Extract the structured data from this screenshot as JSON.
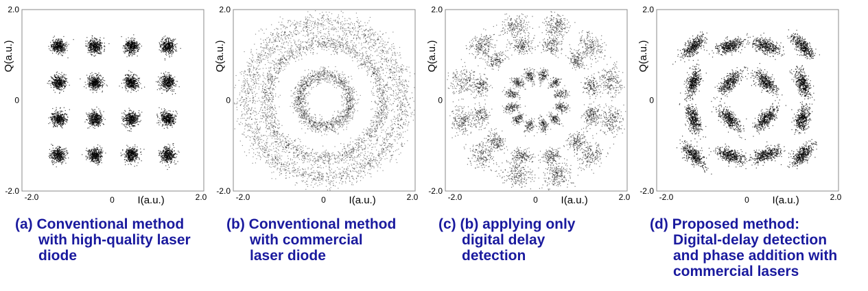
{
  "chart_data": [
    {
      "type": "scatter",
      "panel_id": "a",
      "caption": [
        "(a) Conventional method",
        "with high-quality laser",
        "diode"
      ],
      "xlabel": "I(a.u.)",
      "ylabel": "Q(a.u.)",
      "xlim": [
        -2.0,
        2.0
      ],
      "ylim": [
        -2.0,
        2.0
      ],
      "x_ticks": [
        "-2.0",
        "0",
        "2.0"
      ],
      "y_ticks": [
        "2.0",
        "0",
        "-2.0"
      ],
      "grid": false,
      "point_color": "#000000",
      "pattern": "16QAM tight clusters",
      "clusters": [
        {
          "x": -1.2,
          "y": 1.2
        },
        {
          "x": -0.4,
          "y": 1.2
        },
        {
          "x": 0.4,
          "y": 1.2
        },
        {
          "x": 1.2,
          "y": 1.2
        },
        {
          "x": -1.2,
          "y": 0.4
        },
        {
          "x": -0.4,
          "y": 0.4
        },
        {
          "x": 0.4,
          "y": 0.4
        },
        {
          "x": 1.2,
          "y": 0.4
        },
        {
          "x": -1.2,
          "y": -0.4
        },
        {
          "x": -0.4,
          "y": -0.4
        },
        {
          "x": 0.4,
          "y": -0.4
        },
        {
          "x": 1.2,
          "y": -0.4
        },
        {
          "x": -1.2,
          "y": -1.2
        },
        {
          "x": -0.4,
          "y": -1.2
        },
        {
          "x": 0.4,
          "y": -1.2
        },
        {
          "x": 1.2,
          "y": -1.2
        }
      ],
      "cluster_spread": 0.08
    },
    {
      "type": "scatter",
      "panel_id": "b",
      "caption": [
        "(b) Conventional method",
        "with commercial",
        "laser diode"
      ],
      "xlabel": "I(a.u.)",
      "ylabel": "Q(a.u.)",
      "xlim": [
        -2.0,
        2.0
      ],
      "ylim": [
        -2.0,
        2.0
      ],
      "x_ticks": [
        "-2.0",
        "0",
        "2.0"
      ],
      "y_ticks": [
        "2.0",
        "0",
        "-2.0"
      ],
      "grid": false,
      "point_color": "#000000",
      "pattern": "phase-smeared rings",
      "rings": [
        {
          "radius": 0.57,
          "spread": 0.08
        },
        {
          "radius": 1.27,
          "spread": 0.09
        },
        {
          "radius": 1.7,
          "spread": 0.14
        }
      ]
    },
    {
      "type": "scatter",
      "panel_id": "c",
      "caption": [
        "(c) (b) applying only",
        "digital delay",
        "detection"
      ],
      "xlabel": "I(a.u.)",
      "ylabel": "Q(a.u.)",
      "xlim": [
        -2.0,
        2.0
      ],
      "ylim": [
        -2.0,
        2.0
      ],
      "x_ticks": [
        "-2.0",
        "0",
        "2.0"
      ],
      "y_ticks": [
        "2.0",
        "0",
        "-2.0"
      ],
      "grid": false,
      "point_color": "#000000",
      "pattern": "rings with 12 lobes each",
      "rings": [
        {
          "radius": 0.57,
          "lobes": 12,
          "spread": 0.08
        },
        {
          "radius": 1.27,
          "lobes": 12,
          "spread": 0.09
        },
        {
          "radius": 1.7,
          "lobes": 12,
          "spread": 0.13
        }
      ]
    },
    {
      "type": "scatter",
      "panel_id": "d",
      "caption": [
        "(d) Proposed method:",
        "Digital-delay detection",
        "and phase addition with",
        "commercial lasers"
      ],
      "xlabel": "I(a.u.)",
      "ylabel": "Q(a.u.)",
      "xlim": [
        -2.0,
        2.0
      ],
      "ylim": [
        -2.0,
        2.0
      ],
      "x_ticks": [
        "-2.0",
        "0",
        "2.0"
      ],
      "y_ticks": [
        "2.0",
        "0",
        "-2.0"
      ],
      "grid": false,
      "point_color": "#000000",
      "pattern": "16QAM tangentially elongated clusters",
      "clusters": [
        {
          "x": -1.2,
          "y": 1.2
        },
        {
          "x": -0.4,
          "y": 1.2
        },
        {
          "x": 0.4,
          "y": 1.2
        },
        {
          "x": 1.2,
          "y": 1.2
        },
        {
          "x": -1.2,
          "y": 0.4
        },
        {
          "x": -0.4,
          "y": 0.4
        },
        {
          "x": 0.4,
          "y": 0.4
        },
        {
          "x": 1.2,
          "y": 0.4
        },
        {
          "x": -1.2,
          "y": -0.4
        },
        {
          "x": -0.4,
          "y": -0.4
        },
        {
          "x": 0.4,
          "y": -0.4
        },
        {
          "x": 1.2,
          "y": -0.4
        },
        {
          "x": -1.2,
          "y": -1.2
        },
        {
          "x": -0.4,
          "y": -1.2
        },
        {
          "x": 0.4,
          "y": -1.2
        },
        {
          "x": 1.2,
          "y": -1.2
        }
      ],
      "cluster_spread": 0.07,
      "tangential_spread": 0.16
    }
  ],
  "colors": {
    "caption": "#1a1a9e",
    "points": "#000000",
    "frame": "#888888"
  }
}
